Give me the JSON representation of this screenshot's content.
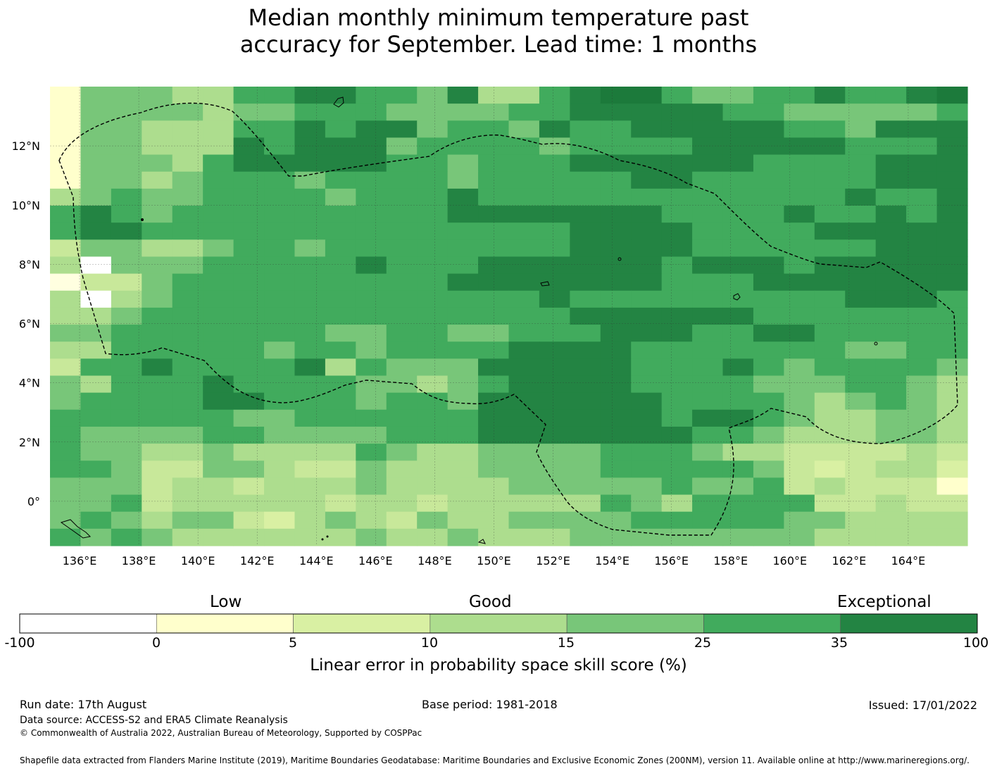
{
  "title": {
    "line1": "Median monthly minimum temperature past",
    "line2": "accuracy for September. Lead time: 1 months"
  },
  "map": {
    "lat_labels": [
      "12°N",
      "10°N",
      "8°N",
      "6°N",
      "4°N",
      "2°N",
      "0°"
    ],
    "lon_labels": [
      "136°E",
      "138°E",
      "140°E",
      "142°E",
      "144°E",
      "146°E",
      "148°E",
      "150°E",
      "152°E",
      "154°E",
      "156°E",
      "158°E",
      "160°E",
      "162°E",
      "164°E"
    ],
    "lon_range": [
      135,
      166
    ],
    "lat_range": [
      -1.5,
      14
    ],
    "grid_rows": [
      "2DDDCCEEFFEEDFCCEFGGEDDEEFEEFG",
      "2DDDDCDDEEEDDDDEEFFFFFEEDDDDDE",
      "2DDCCCEEFEFFDEEDFEEFFFFFEEDFFF",
      "2DDCCCFEFFFDEEEEDEEEEFFFFFEEEF",
      "2DDDCEFFFFFEEDEEEFFFFFFEEEEFFF",
      "2DDCDEEEDEEEEDEEEEEFFEEEEEEFFF",
      "CDEDDEEEEDEEEFEEEEEEEEEEEEFEEF",
      "EFEDEEEEEEEEEFFFFFFFEEEEFEEFEF",
      "EFFEEEEEEEEEEEEEEFFFFEEEEFFFFF",
      "BDDCCDEEDEEEEEEEEFFFFEEEEEEFFF",
      "C1DDDEEEEEFEEEFFFFFFEFFFEFFFFF",
      "3BBDEEEEEEEEEFFFFFFFEEEFFFFFFF",
      "C1CDEEEEEEEEEEEEFEEEEEEEEEFFFE",
      "CCDEEEEEEEEEEEEEEFFFFFFEEEEEEE",
      "DDEEEEEEEDDEEDDEEEFFFEEFFEEEEE",
      "CCEEEEEDEEDEEEEFFFFEEEEEEEDDEE",
      "BEEFEEEEFCEDDDFFFFFEEEFEDEEEED",
      "DCEEEFEEEEDDCDEFFFFEEEEDDDEEDC",
      "DEEEEFFEEEDEEDFFFFFFEEEEDCDEDC",
      "EEEEEEDDEEEEEEFFFFFFEFFEDCCDDC",
      "EDDDDEEDDDDEEEFFFFFFFEEDCCCDDC",
      "EDDCCDCCCCEDCCDDDDEEEDCCBBBBCB",
      "EEDBBDDCBBDCCCDDDDEEEEEDBABCCA",
      "DDDBCCBCCCDCCCCDDDDDEDDEBCBBB2",
      "DDEBCCCCCBCCBCCCCCEDCEEEEBBCBB",
      "DEDCDDBACDCBDCCDDDDEEEEEDDCCCC",
      "EDEDCCCCCCDCCDCCCDDDDDDDDCCCCC"
    ],
    "legend_note": "Digits 1-3 are pale yellow/white cells; letters A-G are green classes from lightest to darkest"
  },
  "colorbar": {
    "words": [
      "Low",
      "Good",
      "Exceptional"
    ],
    "ticks": [
      "-100",
      "0",
      "5",
      "10",
      "15",
      "25",
      "35",
      "100"
    ],
    "colors": [
      "#ffffff",
      "#ffffcc",
      "#d9f0a3",
      "#addd8e",
      "#78c679",
      "#41ab5d",
      "#238443"
    ],
    "label": "Linear error in probability space skill score (%)"
  },
  "footer": {
    "run_date": "Run date: 17th August",
    "base_period": "Base period: 1981-2018",
    "issued": "Issued: 17/01/2022",
    "data_source": "Data source: ACCESS-S2 and ERA5 Climate Reanalysis",
    "copyright": "© Commonwealth of Australia 2022, Australian Bureau of Meteorology, Supported by COSPPac",
    "shapefile": "Shapefile data extracted from Flanders Marine Institute (2019), Maritime Boundaries Geodatabase: Maritime Boundaries and Exclusive Economic Zones (200NM), version 11. Available online at http://www.marineregions.org/."
  }
}
